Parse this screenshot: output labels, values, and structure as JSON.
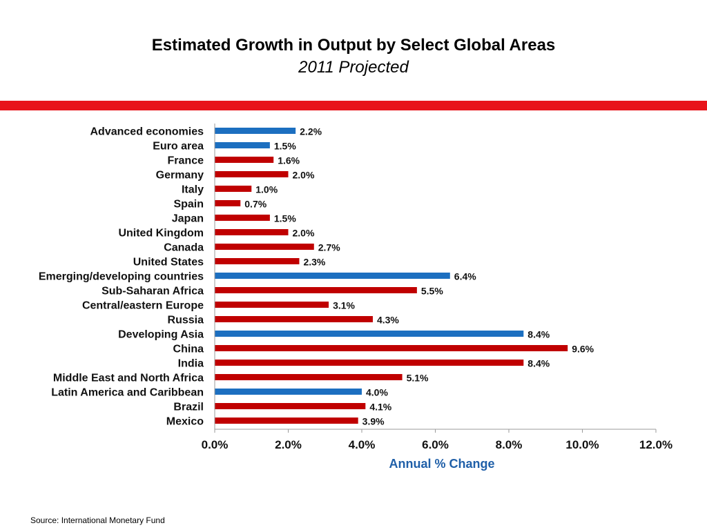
{
  "chart_data": {
    "type": "bar",
    "orientation": "horizontal",
    "title": "Estimated Growth in Output by Select Global Areas",
    "subtitle": "2011 Projected",
    "xlabel": "Annual % Change",
    "xlim": [
      0,
      12
    ],
    "xticks": [
      "0.0%",
      "2.0%",
      "4.0%",
      "6.0%",
      "8.0%",
      "10.0%",
      "12.0%"
    ],
    "grid": false,
    "colors": {
      "aggregate": "#1c6fc0",
      "country": "#c00000",
      "axis_title": "#1f5fa8"
    },
    "categories": [
      "Advanced economies",
      "Euro area",
      "France",
      "Germany",
      "Italy",
      "Spain",
      "Japan",
      "United Kingdom",
      "Canada",
      "United States",
      "Emerging/developing countries",
      "Sub-Saharan Africa",
      "Central/eastern Europe",
      "Russia",
      "Developing Asia",
      "China",
      "India",
      "Middle East and North Africa",
      "Latin America and Caribbean",
      "Brazil",
      "Mexico"
    ],
    "values": [
      2.2,
      1.5,
      1.6,
      2.0,
      1.0,
      0.7,
      1.5,
      2.0,
      2.7,
      2.3,
      6.4,
      5.5,
      3.1,
      4.3,
      8.4,
      9.6,
      8.4,
      5.1,
      4.0,
      4.1,
      3.9
    ],
    "data_labels": [
      "2.2%",
      "1.5%",
      "1.6%",
      "2.0%",
      "1.0%",
      "0.7%",
      "1.5%",
      "2.0%",
      "2.7%",
      "2.3%",
      "6.4%",
      "5.5%",
      "3.1%",
      "4.3%",
      "8.4%",
      "9.6%",
      "8.4%",
      "5.1%",
      "4.0%",
      "4.1%",
      "3.9%"
    ],
    "groups": [
      "aggregate",
      "aggregate",
      "country",
      "country",
      "country",
      "country",
      "country",
      "country",
      "country",
      "country",
      "aggregate",
      "country",
      "country",
      "country",
      "aggregate",
      "country",
      "country",
      "country",
      "aggregate",
      "country",
      "country"
    ]
  },
  "footer": {
    "source": "Source:  International Monetary Fund"
  }
}
